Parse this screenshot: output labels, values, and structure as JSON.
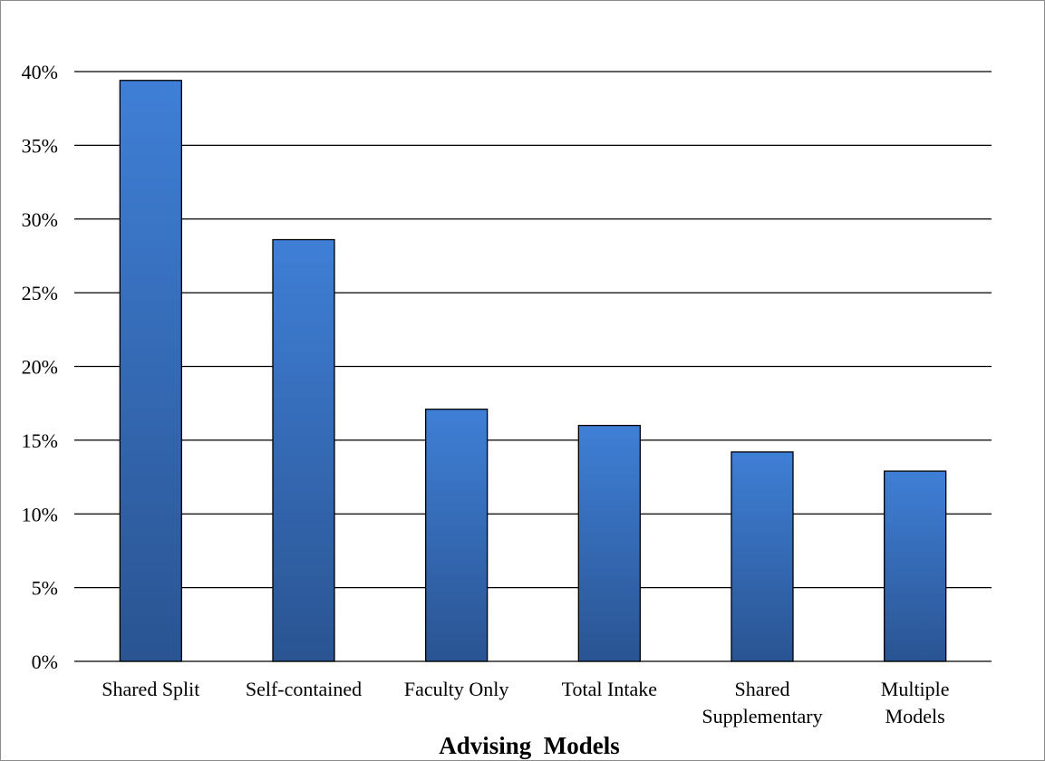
{
  "chart_data": {
    "type": "bar",
    "title": "",
    "xlabel": "Advising  Models",
    "ylabel": "",
    "categories": [
      [
        "Shared Split"
      ],
      [
        "Self-contained"
      ],
      [
        "Faculty Only"
      ],
      [
        "Total Intake"
      ],
      [
        "Shared",
        "Supplementary"
      ],
      [
        "Multiple",
        "Models"
      ]
    ],
    "values": [
      39.4,
      28.6,
      17.1,
      16.0,
      14.2,
      12.9
    ],
    "value_unit": "%",
    "ylim": [
      0,
      40
    ],
    "yticks": [
      0,
      5,
      10,
      15,
      20,
      25,
      30,
      35,
      40
    ],
    "ytick_labels": [
      "0%",
      "5%",
      "10%",
      "15%",
      "20%",
      "25%",
      "30%",
      "35%",
      "40%"
    ],
    "grid": true,
    "legend": "none",
    "colors": {
      "bar_top": "#3F7FD6",
      "bar_bottom": "#2A5492",
      "bar_outline": "#000000",
      "gridline": "#000000"
    }
  }
}
